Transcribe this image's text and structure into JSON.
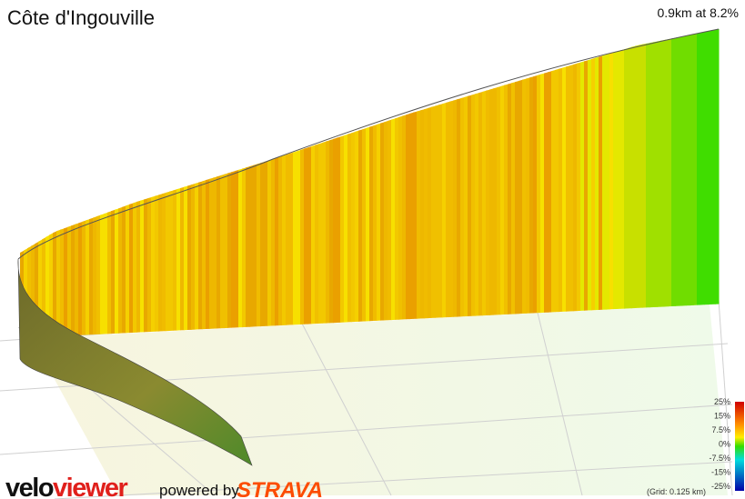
{
  "header": {
    "title": "Côte d'Ingouville",
    "summary": "0.9km at 8.2%"
  },
  "legend": {
    "ticks": [
      "25%",
      "15%",
      "7.5%",
      "0%",
      "-7.5%",
      "-15%",
      "-25%"
    ]
  },
  "grid_note": "(Grid: 0.125 km)",
  "branding": {
    "velo": "velo",
    "viewer": "viewer",
    "powered": "powered by",
    "strava": "STRAVA"
  }
}
